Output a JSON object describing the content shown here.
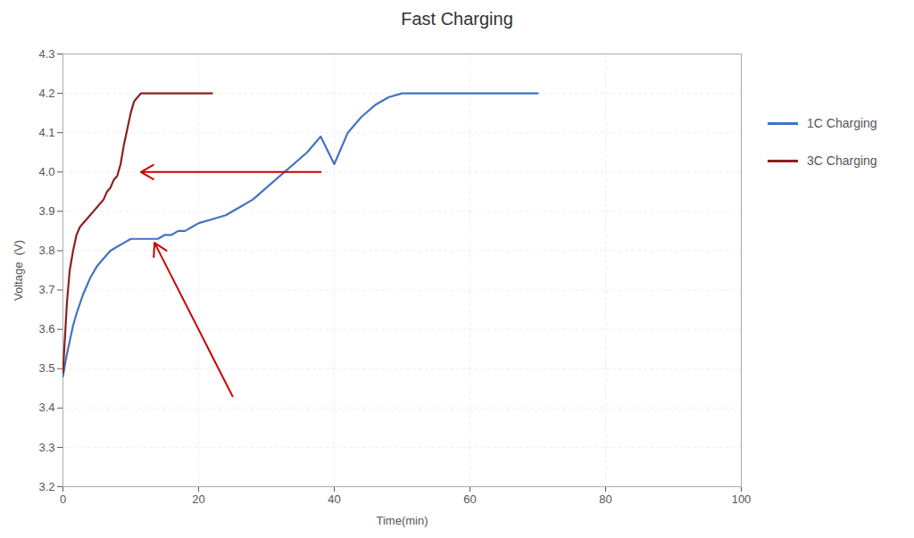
{
  "chart_data": {
    "type": "line",
    "title": "Fast Charging",
    "xlabel": "Time(min)",
    "ylabel": "Voltage  (V)",
    "xlim": [
      0,
      100
    ],
    "ylim": [
      3.2,
      4.3
    ],
    "xticks": [
      0,
      20,
      40,
      60,
      80,
      100
    ],
    "yticks": [
      3.2,
      3.3,
      3.4,
      3.5,
      3.6,
      3.7,
      3.8,
      3.9,
      {
        "value": 4.0,
        "label": "4.0"
      },
      4.1,
      4.2,
      4.3
    ],
    "grid": true,
    "legend": "right",
    "series": [
      {
        "name": "1C Charging",
        "color": "#4472C4",
        "x": [
          0,
          0.5,
          1,
          1.5,
          2,
          3,
          4,
          5,
          6,
          7,
          8,
          9,
          10,
          11,
          12,
          13,
          14,
          15,
          16,
          17,
          18,
          19,
          20,
          22,
          24,
          26,
          28,
          30,
          32,
          34,
          36,
          38,
          40,
          42,
          44,
          46,
          48,
          50,
          52,
          54,
          56,
          58,
          60,
          62,
          64,
          66,
          68,
          70
        ],
        "values": [
          3.48,
          3.53,
          3.57,
          3.61,
          3.64,
          3.69,
          3.73,
          3.76,
          3.78,
          3.8,
          3.81,
          3.82,
          3.83,
          3.83,
          3.83,
          3.83,
          3.83,
          3.84,
          3.84,
          3.85,
          3.85,
          3.86,
          3.87,
          3.88,
          3.89,
          3.91,
          3.93,
          3.96,
          3.99,
          4.02,
          4.05,
          4.09,
          4.02,
          4.1,
          4.14,
          4.17,
          4.19,
          4.2,
          4.2,
          4.2,
          4.2,
          4.2,
          4.2,
          4.2,
          4.2,
          4.2,
          4.2,
          4.2
        ]
      },
      {
        "name": "3C Charging",
        "color": "#8B2020",
        "x": [
          0,
          0.3,
          0.6,
          1,
          1.5,
          2,
          2.5,
          3,
          3.5,
          4,
          4.5,
          5,
          5.5,
          6,
          6.5,
          7,
          7.5,
          8,
          8.5,
          9,
          9.5,
          10,
          10.5,
          11,
          11.5,
          12,
          13,
          14,
          15,
          16,
          17,
          18,
          19,
          20,
          22
        ],
        "values": [
          3.49,
          3.58,
          3.67,
          3.75,
          3.8,
          3.84,
          3.86,
          3.87,
          3.88,
          3.89,
          3.9,
          3.91,
          3.92,
          3.93,
          3.95,
          3.96,
          3.98,
          3.99,
          4.02,
          4.07,
          4.11,
          4.15,
          4.18,
          4.19,
          4.2,
          4.2,
          4.2,
          4.2,
          4.2,
          4.2,
          4.2,
          4.2,
          4.2,
          4.2,
          4.2
        ]
      }
    ],
    "annotations": [
      {
        "type": "arrow",
        "x_start": 38,
        "y_start": 4.0,
        "x_end": 11.5,
        "y_end": 4.0,
        "color": "#CC0000"
      },
      {
        "type": "arrow",
        "x_start": 25,
        "y_start": 3.43,
        "x_end": 13.5,
        "y_end": 3.82,
        "color": "#CC0000"
      }
    ]
  }
}
